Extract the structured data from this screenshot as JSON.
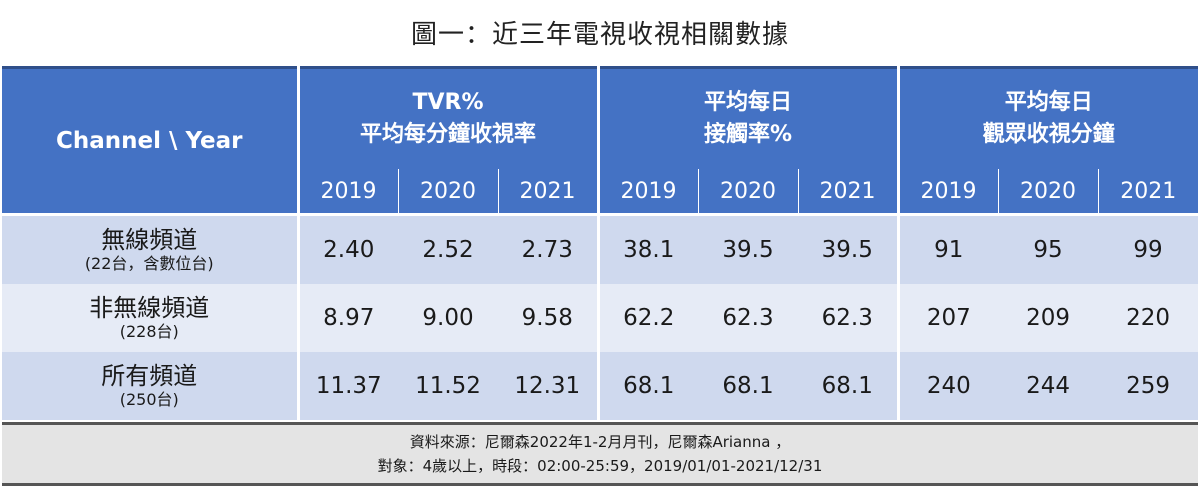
{
  "title": "圖一：近三年電視收視相關數據",
  "chart_data": {
    "type": "table",
    "title": "圖一：近三年電視收視相關數據",
    "corner_label": "Channel \\ Year",
    "groups": [
      {
        "label_line1": "TVR%",
        "label_line2": "平均每分鐘收視率",
        "years": [
          "2019",
          "2020",
          "2021"
        ]
      },
      {
        "label_line1": "平均每日",
        "label_line2": "接觸率%",
        "years": [
          "2019",
          "2020",
          "2021"
        ]
      },
      {
        "label_line1": "平均每日",
        "label_line2": "觀眾收視分鐘",
        "years": [
          "2019",
          "2020",
          "2021"
        ]
      }
    ],
    "rows": [
      {
        "name": "無線頻道",
        "sub": "(22台，含數位台)",
        "values": [
          "2.40",
          "2.52",
          "2.73",
          "38.1",
          "39.5",
          "39.5",
          "91",
          "95",
          "99"
        ]
      },
      {
        "name": "非無線頻道",
        "sub": "(228台)",
        "values": [
          "8.97",
          "9.00",
          "9.58",
          "62.2",
          "62.3",
          "62.3",
          "207",
          "209",
          "220"
        ]
      },
      {
        "name": "所有頻道",
        "sub": "(250台)",
        "values": [
          "11.37",
          "11.52",
          "12.31",
          "68.1",
          "68.1",
          "68.1",
          "240",
          "244",
          "259"
        ]
      }
    ]
  },
  "note": {
    "line1": "資料來源：尼爾森2022年1-2月月刊，尼爾森Arianna ，",
    "line2": "對象：4歲以上，時段：02:00-25:59，2019/01/01-2021/12/31"
  },
  "colors": {
    "header": "#4472c4",
    "row_dark": "#cfd9ee",
    "row_light": "#e6ebf6",
    "note_bg": "#e4e4e4"
  }
}
